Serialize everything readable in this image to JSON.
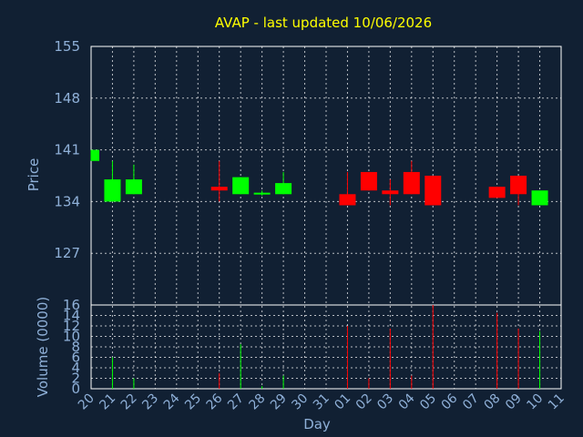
{
  "chart_data": {
    "title": "AVAP - last updated 10/06/2026",
    "xlabel": "Day",
    "price": {
      "type": "candlestick",
      "ylabel": "Price",
      "ylim": [
        120,
        155
      ],
      "yticks": [
        "155",
        "148",
        "141",
        "134",
        "127"
      ],
      "ytick_values": [
        155,
        148,
        141,
        134,
        127
      ],
      "grid": true
    },
    "volume": {
      "type": "bar",
      "ylabel": "Volume (0000)",
      "ylim": [
        0,
        16
      ],
      "yticks": [
        "16",
        "14",
        "12",
        "10",
        "8",
        "6",
        "4",
        "2",
        "0"
      ],
      "ytick_values": [
        16,
        14,
        12,
        10,
        8,
        6,
        4,
        2,
        0
      ],
      "grid": true
    },
    "categories": [
      "20",
      "21",
      "22",
      "23",
      "24",
      "25",
      "26",
      "27",
      "28",
      "29",
      "30",
      "31",
      "01",
      "02",
      "03",
      "04",
      "05",
      "06",
      "07",
      "08",
      "09",
      "10",
      "11"
    ],
    "candles": [
      {
        "day": "20",
        "open": 139.5,
        "close": 141.0,
        "high": 141.0,
        "low": 139.5,
        "volume": 0,
        "color": "#00ff00"
      },
      {
        "day": "21",
        "open": 134.0,
        "close": 137.0,
        "high": 139.5,
        "low": 134.0,
        "volume": 6,
        "color": "#00ff00"
      },
      {
        "day": "22",
        "open": 135.0,
        "close": 137.0,
        "high": 139.0,
        "low": 135.0,
        "volume": 2,
        "color": "#00ff00"
      },
      {
        "day": "26",
        "open": 136.0,
        "close": 135.5,
        "high": 139.5,
        "low": 134.0,
        "volume": 3,
        "color": "#ff0000"
      },
      {
        "day": "27",
        "open": 135.0,
        "close": 137.3,
        "high": 137.3,
        "low": 135.0,
        "volume": 8.5,
        "color": "#00ff00"
      },
      {
        "day": "28",
        "open": 135.0,
        "close": 135.2,
        "high": 135.5,
        "low": 134.8,
        "volume": 0.5,
        "color": "#00ff00"
      },
      {
        "day": "29",
        "open": 135.0,
        "close": 136.5,
        "high": 138.0,
        "low": 135.0,
        "volume": 2.5,
        "color": "#00ff00"
      },
      {
        "day": "01",
        "open": 135.0,
        "close": 133.5,
        "high": 138.0,
        "low": 133.5,
        "volume": 12,
        "color": "#ff0000"
      },
      {
        "day": "02",
        "open": 138.0,
        "close": 135.5,
        "high": 138.0,
        "low": 135.5,
        "volume": 2,
        "color": "#ff0000"
      },
      {
        "day": "03",
        "open": 135.5,
        "close": 135.0,
        "high": 137.0,
        "low": 133.5,
        "volume": 11.5,
        "color": "#ff0000"
      },
      {
        "day": "04",
        "open": 138.0,
        "close": 135.0,
        "high": 139.5,
        "low": 135.0,
        "volume": 2.5,
        "color": "#ff0000"
      },
      {
        "day": "05",
        "open": 137.5,
        "close": 133.5,
        "high": 137.5,
        "low": 133.5,
        "volume": 16,
        "color": "#ff0000"
      },
      {
        "day": "08",
        "open": 136.0,
        "close": 134.5,
        "high": 136.0,
        "low": 134.5,
        "volume": 14.5,
        "color": "#ff0000"
      },
      {
        "day": "09",
        "open": 137.5,
        "close": 135.0,
        "high": 137.5,
        "low": 133.5,
        "volume": 11.5,
        "color": "#ff0000"
      },
      {
        "day": "10",
        "open": 133.5,
        "close": 135.5,
        "high": 135.5,
        "low": 133.5,
        "volume": 11,
        "color": "#00ff00"
      }
    ],
    "colors": {
      "up": "#00ff00",
      "down": "#ff0000",
      "title": "#ffff00",
      "axis_text": "#8fb0d8",
      "background": "#112033",
      "grid": "#ffffff"
    }
  }
}
